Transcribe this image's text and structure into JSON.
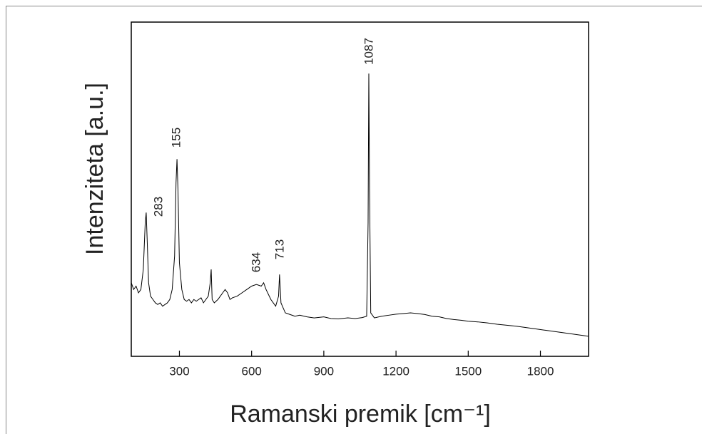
{
  "chart_data": {
    "type": "line",
    "x_label": "Ramanski premik [cm⁻¹]",
    "y_label": "Intenziteta [a.u.]",
    "annotations": [
      "283",
      "155",
      "634",
      "713",
      "1087"
    ],
    "xlim": [
      100,
      2000
    ],
    "xticks": [
      300,
      600,
      900,
      1200,
      1500,
      1800
    ],
    "ylim": [
      0,
      100
    ],
    "series": [
      {
        "color": "#000000",
        "x": [
          100,
          110,
          120,
          130,
          140,
          150,
          158,
          162,
          166,
          172,
          180,
          190,
          200,
          210,
          220,
          230,
          240,
          250,
          260,
          270,
          280,
          286,
          290,
          294,
          300,
          310,
          320,
          330,
          340,
          350,
          360,
          370,
          380,
          390,
          400,
          410,
          420,
          428,
          432,
          436,
          445,
          460,
          470,
          480,
          490,
          500,
          510,
          520,
          540,
          560,
          580,
          600,
          620,
          640,
          650,
          660,
          680,
          700,
          712,
          716,
          722,
          740,
          760,
          780,
          800,
          830,
          860,
          900,
          930,
          960,
          1000,
          1030,
          1060,
          1078,
          1084,
          1087,
          1090,
          1095,
          1110,
          1140,
          1170,
          1200,
          1230,
          1260,
          1290,
          1320,
          1350,
          1380,
          1410,
          1440,
          1470,
          1500,
          1540,
          1580,
          1620,
          1660,
          1700,
          1740,
          1780,
          1820,
          1860,
          1900,
          1950,
          2000
        ],
        "values": [
          22,
          20,
          21,
          19,
          20,
          26,
          40,
          43,
          35,
          22,
          18,
          17,
          16,
          15.5,
          16,
          15,
          15.5,
          16,
          17,
          20,
          30,
          52,
          59,
          50,
          28,
          20,
          17,
          16.5,
          17,
          16,
          17,
          16.5,
          17,
          17.5,
          16,
          17,
          18,
          22,
          26,
          17,
          16,
          17,
          18,
          19,
          20,
          19,
          17,
          17.5,
          18,
          19,
          20,
          21,
          21.5,
          21,
          22,
          20,
          17,
          15,
          18,
          24.5,
          16,
          13,
          12.5,
          12,
          12.3,
          11.8,
          11.5,
          11.8,
          11.3,
          11.2,
          11.5,
          11.3,
          11.6,
          12,
          40,
          84.6,
          50,
          13,
          11.5,
          12,
          12.3,
          12.6,
          12.8,
          13,
          12.8,
          12.5,
          12,
          11.8,
          11.3,
          11,
          10.8,
          10.5,
          10.3,
          10,
          9.6,
          9.3,
          9,
          8.6,
          8.2,
          7.8,
          7.4,
          7,
          6.5,
          6
        ]
      }
    ]
  }
}
